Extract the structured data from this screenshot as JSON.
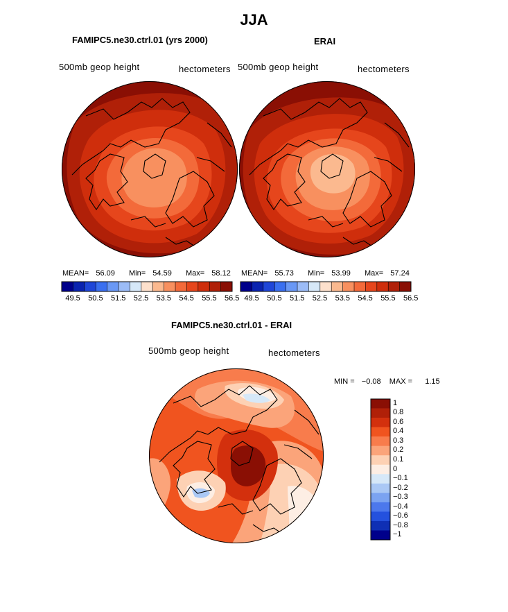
{
  "figure": {
    "title": "JJA"
  },
  "panels": [
    {
      "title": "FAMIPC5.ne30.ctrl.01 (yrs 2000)",
      "variable": "500mb geop height",
      "units": "hectometers",
      "stats": {
        "mean_label": "MEAN=",
        "mean": "56.09",
        "min_label": "Min=",
        "min": "54.59",
        "max_label": "Max=",
        "max": "58.12"
      }
    },
    {
      "title": "ERAI",
      "variable": "500mb geop height",
      "units": "hectometers",
      "stats": {
        "mean_label": "MEAN=",
        "mean": "55.73",
        "min_label": "Min=",
        "min": "53.99",
        "max_label": "Max=",
        "max": "57.24"
      }
    }
  ],
  "colorbar_top": {
    "ticks": [
      "49.5",
      "50.5",
      "51.5",
      "52.5",
      "53.5",
      "54.5",
      "55.5",
      "56.5"
    ],
    "colors": [
      "#00008b",
      "#0a23b0",
      "#1f46d8",
      "#3a6ff0",
      "#6a98f5",
      "#9cbcf7",
      "#d6e8f8",
      "#fde0cc",
      "#fbb98f",
      "#f8905f",
      "#f36a3a",
      "#e6461c",
      "#cf2e0c",
      "#b02008",
      "#8a0f04"
    ]
  },
  "diff_panel": {
    "title": "FAMIPC5.ne30.ctrl.01 - ERAI",
    "variable": "500mb geop height",
    "units": "hectometers",
    "min_label": "MIN =",
    "min": "−0.08",
    "max_label": "MAX =",
    "max": "1.15"
  },
  "colorbar_diff": {
    "labels": [
      "1",
      "0.8",
      "0.6",
      "0.4",
      "0.3",
      "0.2",
      "0.1",
      "0",
      "−0.1",
      "−0.2",
      "−0.3",
      "−0.4",
      "−0.6",
      "−0.8",
      "−1"
    ],
    "colors": [
      "#8a0f04",
      "#b02008",
      "#d3300d",
      "#f0541f",
      "#f87c4c",
      "#fba47a",
      "#fdd1b4",
      "#fdeee4",
      "#d6e8f8",
      "#aac8f5",
      "#7ba3f1",
      "#4c78ec",
      "#2451de",
      "#0f2fb4",
      "#00008b"
    ]
  },
  "map_colors": {
    "lvl1": "#8a0f04",
    "lvl2": "#b02008",
    "lvl3": "#cf2e0c",
    "lvl4": "#e6461c",
    "lvl5": "#f36a3a",
    "lvl6": "#f8905f",
    "lvl7": "#fbb98f",
    "d_pos_high": "#8a0f04",
    "d_pos_med": "#d3300d",
    "d_pos": "#f0541f",
    "d_pos_low": "#f87c4c",
    "d_low": "#fba47a",
    "d_vlow": "#fdd1b4",
    "d_zero": "#fdeee4",
    "d_neg": "#d6e8f8",
    "d_neg2": "#aac8f5"
  }
}
